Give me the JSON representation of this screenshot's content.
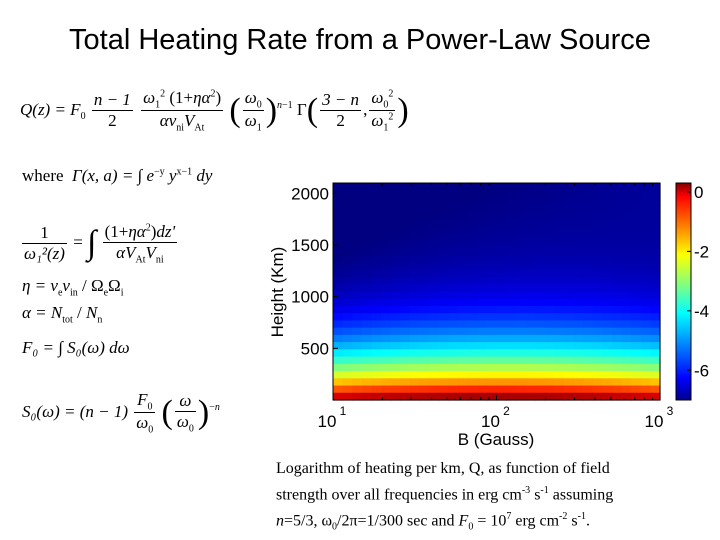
{
  "slide": {
    "title": "Total Heating Rate from a Power-Law Source"
  },
  "equations": {
    "where_label": "where",
    "q_lhs": "Q(z) = F",
    "q_lhs_sub": "0",
    "q_n_minus_1": "n − 1",
    "q_two": "2",
    "q_gamma": "Γ",
    "q_gamma_num": "3 − n",
    "q_gamma_den": "2",
    "gamma_def": "Γ(x, a) = ∫ e",
    "gamma_exp1": "−y",
    "gamma_y": " y",
    "gamma_exp2": "x−1",
    "gamma_dy": " dy",
    "int_num": "1",
    "int_den": "ω₁²(z)",
    "int_eq": "=",
    "int_dz": "dz'",
    "eta_def": "η = ν",
    "eta_rest": "ν",
    "alpha_def": "α = N",
    "f0_def": "F₀ = ∫ S₀(ω) dω",
    "s0_def": "S₀(ω) = (n − 1)"
  },
  "chart_data": {
    "type": "heatmap",
    "title": "",
    "xlabel": "B (Gauss)",
    "ylabel": "Height (Km)",
    "x_scale": "log",
    "xlim": [
      10,
      1000
    ],
    "ylim": [
      0,
      2100
    ],
    "x_ticks": [
      10,
      100,
      1000
    ],
    "x_tick_labels": [
      {
        "base": "10",
        "exp": "1"
      },
      {
        "base": "10",
        "exp": "2"
      },
      {
        "base": "10",
        "exp": "3"
      }
    ],
    "y_ticks": [
      500,
      1000,
      1500,
      2000
    ],
    "y_tick_labels": [
      "500",
      "1000",
      "1500",
      "2000"
    ],
    "colorbar": {
      "range": [
        -7,
        0.3
      ],
      "ticks": [
        0,
        -2,
        -4,
        -6
      ],
      "tick_labels": [
        "0",
        "-2",
        "-4",
        "-6"
      ],
      "colormap": "jet"
    },
    "value_model": {
      "low_height_value": 0,
      "high_height_value": -7,
      "description_free": true
    }
  },
  "caption": {
    "line1": "Logarithm of heating per km, Q, as function of field",
    "line2_a": "strength over all frequencies in erg cm",
    "line2_exp1": "-3",
    "line2_b": " s",
    "line2_exp2": "-1",
    "line2_c": " assuming",
    "line3_a": "n",
    "line3_b": "=5/3, ω",
    "line3_sub": "0",
    "line3_c": "/2π=1/300 sec and ",
    "line3_d": "F",
    "line3_sub2": "0",
    "line3_e": " = 10",
    "line3_exp": "7",
    "line3_f": " erg cm",
    "line3_exp2": "-2",
    "line3_g": " s",
    "line3_exp3": "-1",
    "line3_h": "."
  }
}
